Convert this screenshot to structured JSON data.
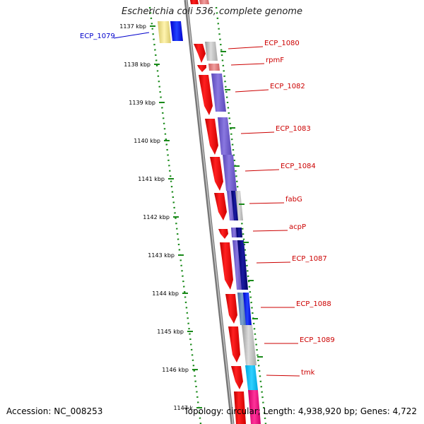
{
  "title": "Escherichia coli 536, complete genome",
  "accession": "Accession: NC_008253",
  "topology": "Topology: circular; Length: 4,938,920 bp; Genes: 4,722",
  "colors": {
    "backbone": "#808080",
    "tick": "#1a8a1a",
    "cds": "#ee0000",
    "label_red": "#cc0000",
    "label_blue": "#0000cc"
  },
  "ticks": [
    "1137 kbp",
    "1138 kbp",
    "1139 kbp",
    "1140 kbp",
    "1141 kbp",
    "1142 kbp",
    "1143 kbp",
    "1144 kbp",
    "1145 kbp",
    "1146 kbp",
    "1147 k"
  ],
  "genes": [
    {
      "label": "ECP_1079",
      "color": "label_blue"
    },
    {
      "label": "ECP_1080",
      "color": "label_red"
    },
    {
      "label": "rpmF",
      "color": "label_red"
    },
    {
      "label": "ECP_1082",
      "color": "label_red"
    },
    {
      "label": "ECP_1083",
      "color": "label_red"
    },
    {
      "label": "ECP_1084",
      "color": "label_red"
    },
    {
      "label": "fabG",
      "color": "label_red"
    },
    {
      "label": "acpP",
      "color": "label_red"
    },
    {
      "label": "ECP_1087",
      "color": "label_red"
    },
    {
      "label": "ECP_1088",
      "color": "label_red"
    },
    {
      "label": "ECP_1089",
      "color": "label_red"
    },
    {
      "label": "tmk",
      "color": "label_red"
    }
  ]
}
